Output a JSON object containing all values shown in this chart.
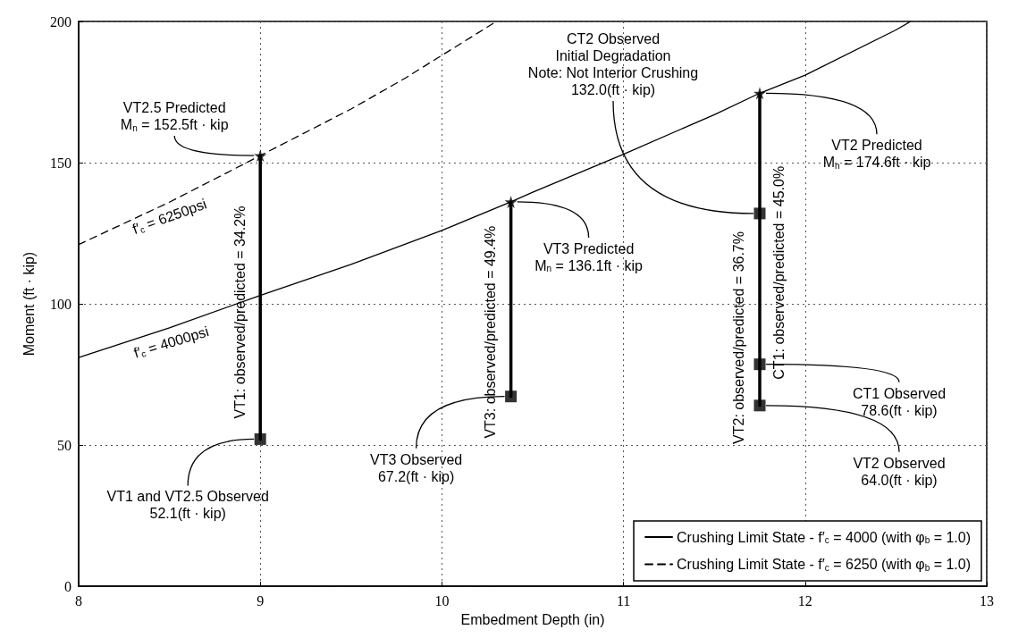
{
  "chart_data": {
    "type": "line",
    "xlabel": "Embedment Depth (in)",
    "ylabel": "Moment (ft · kip)",
    "xlim": [
      8,
      13
    ],
    "ylim": [
      0,
      200
    ],
    "xticks": [
      8,
      9,
      10,
      11,
      12,
      13
    ],
    "yticks": [
      0,
      50,
      100,
      150,
      200
    ],
    "grid": true,
    "legend": "bottom right",
    "series": [
      {
        "name": "Crushing Limit State - f′$_{c}$ = 4000 (with φ$_{b}$ = 1.0)",
        "color": "#000000",
        "line_style": "solid",
        "marker": "none",
        "x": [
          8,
          8.5,
          9,
          9.5,
          10,
          10.38,
          10.5,
          11,
          11.5,
          11.75,
          12,
          12.5,
          12.58
        ],
        "values": [
          81,
          91.5,
          103,
          114,
          126,
          136.1,
          139.5,
          153,
          167,
          174.6,
          181,
          197,
          200
        ]
      },
      {
        "name": "Crushing Limit State - f′$_{c}$ = 6250 (with φ$_{b}$ = 1.0)",
        "color": "#000000",
        "line_style": "dashed",
        "marker": "none",
        "x": [
          8,
          8.5,
          9,
          9.5,
          9.8,
          10.1,
          10.3
        ],
        "values": [
          121,
          136,
          152.5,
          169,
          180,
          192,
          200
        ]
      },
      {
        "color": "#000000",
        "line_style": "solid",
        "marker": "none",
        "x": [
          9,
          9
        ],
        "values": [
          52.1,
          152.5
        ]
      },
      {
        "color": "#000000",
        "line_style": "solid",
        "marker": "none",
        "x": [
          10.38,
          10.38
        ],
        "values": [
          67.2,
          136.1
        ]
      },
      {
        "color": "#000000",
        "line_style": "solid",
        "marker": "none",
        "x": [
          11.75,
          11.75
        ],
        "values": [
          64.0,
          174.6
        ]
      },
      {
        "type": "scatter",
        "color": "#000000",
        "marker": "square",
        "x": [
          9,
          10.38,
          11.75,
          11.75,
          11.75
        ],
        "values": [
          52.1,
          67.2,
          64.0,
          78.6,
          132.0
        ]
      },
      {
        "type": "scatter",
        "color": "#000000",
        "marker": "star",
        "x": [
          9,
          10.38,
          11.75
        ],
        "values": [
          152.5,
          136.1,
          174.6
        ]
      }
    ],
    "annotations": [
      {
        "text": "VT2.5 Predicted\nM$_{n}$ = 152.5ft · kip",
        "x": 9,
        "y": 152.5
      },
      {
        "text": "VT3 Predicted\nM$_{n}$ = 136.1ft · kip",
        "x": 10.38,
        "y": 136.1
      },
      {
        "text": "CT2 Observed\nInitial Degradation\nNote: Not Interior Crushing\n132.0(ft · kip)",
        "x": 11.75,
        "y": 132.0
      },
      {
        "text": "VT2 Predicted\nM$_{n}$ = 174.6ft · kip",
        "x": 11.75,
        "y": 174.6
      },
      {
        "text": "VT1 and VT2.5 Observed\n52.1(ft · kip)",
        "x": 9,
        "y": 52.1
      },
      {
        "text": "VT3 Observed\n67.2(ft · kip)",
        "x": 10.38,
        "y": 67.2
      },
      {
        "text": "CT1 Observed\n78.6(ft · kip)",
        "x": 11.75,
        "y": 78.6
      },
      {
        "text": "VT2 Observed\n64.0(ft · kip)",
        "x": 11.75,
        "y": 64.0
      },
      {
        "text": "f′$_{c}$ = 6250psi",
        "x": 8.5,
        "y": 136
      },
      {
        "text": "f′$_{c}$ = 4000psi",
        "x": 8.5,
        "y": 91.5
      },
      {
        "text": "VT1: observed/predicted = 34.2%",
        "x": 9,
        "y": 97
      },
      {
        "text": "VT3: observed/predicted = 49.4%",
        "x": 10.38,
        "y": 90
      },
      {
        "text": "VT2: observed/predicted = 36.7%",
        "x": 11.75,
        "y": 88
      },
      {
        "text": "CT1: observed/predicted = 45.0%",
        "x": 11.75,
        "y": 111
      }
    ]
  }
}
